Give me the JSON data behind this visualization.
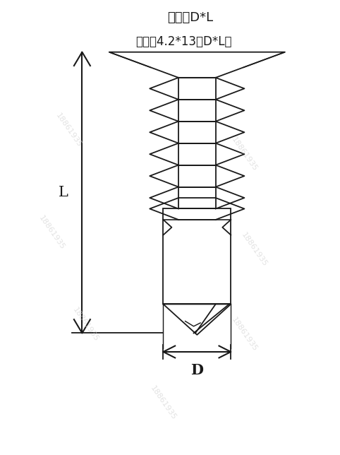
{
  "title_line1": "规格：D*L",
  "title_line2": "例如：4.2*13（D*L）",
  "label_L": "L",
  "label_D": "D",
  "bg_color": "#ffffff",
  "line_color": "#1a1a1a",
  "watermark_color": "#d0d0d0",
  "watermark_text": "18861935",
  "fig_width": 4.82,
  "fig_height": 6.44
}
